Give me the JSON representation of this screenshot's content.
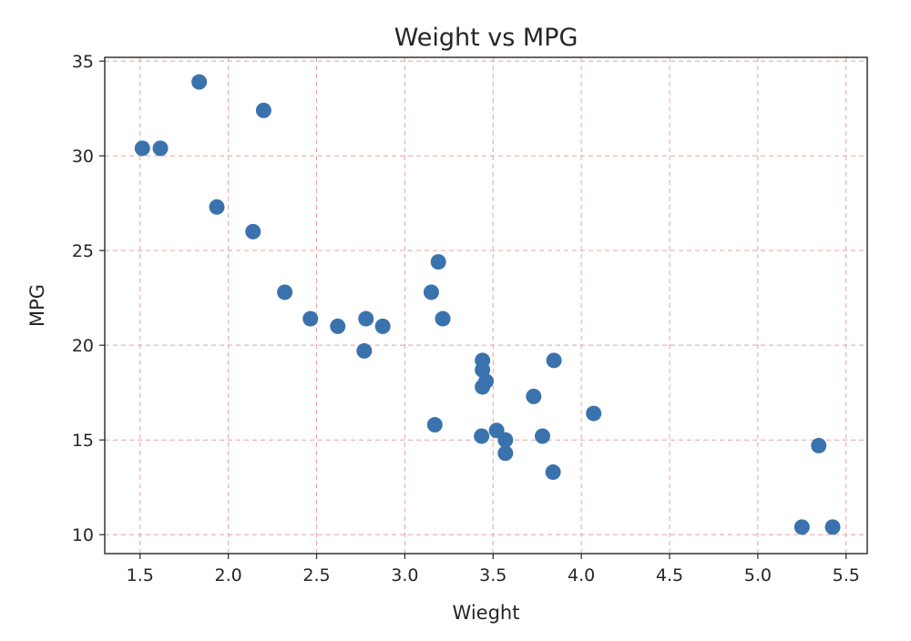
{
  "chart_data": {
    "type": "scatter",
    "title": "Weight vs MPG",
    "xlabel": "Wieght",
    "ylabel": "MPG",
    "xlim": [
      1.3,
      5.62
    ],
    "ylim": [
      9.0,
      35.2
    ],
    "xticks": [
      1.5,
      2.0,
      2.5,
      3.0,
      3.5,
      4.0,
      4.5,
      5.0,
      5.5
    ],
    "xtick_labels": [
      "1.5",
      "2.0",
      "2.5",
      "3.0",
      "3.5",
      "4.0",
      "4.5",
      "5.0",
      "5.5"
    ],
    "yticks": [
      10,
      15,
      20,
      25,
      30,
      35
    ],
    "ytick_labels": [
      "10",
      "15",
      "20",
      "25",
      "30",
      "35"
    ],
    "grid": true,
    "grid_color": "#e8a0a0",
    "marker_color": "#3a72ad",
    "points": [
      {
        "x": 1.513,
        "y": 30.4
      },
      {
        "x": 1.615,
        "y": 30.4
      },
      {
        "x": 1.835,
        "y": 33.9
      },
      {
        "x": 1.935,
        "y": 27.3
      },
      {
        "x": 2.14,
        "y": 26.0
      },
      {
        "x": 2.2,
        "y": 32.4
      },
      {
        "x": 2.32,
        "y": 22.8
      },
      {
        "x": 2.465,
        "y": 21.4
      },
      {
        "x": 2.62,
        "y": 21.0
      },
      {
        "x": 2.77,
        "y": 19.7
      },
      {
        "x": 2.78,
        "y": 21.4
      },
      {
        "x": 2.875,
        "y": 21.0
      },
      {
        "x": 3.15,
        "y": 22.8
      },
      {
        "x": 3.17,
        "y": 15.8
      },
      {
        "x": 3.19,
        "y": 24.4
      },
      {
        "x": 3.215,
        "y": 21.4
      },
      {
        "x": 3.435,
        "y": 15.2
      },
      {
        "x": 3.44,
        "y": 17.8
      },
      {
        "x": 3.44,
        "y": 18.7
      },
      {
        "x": 3.44,
        "y": 19.2
      },
      {
        "x": 3.46,
        "y": 18.1
      },
      {
        "x": 3.52,
        "y": 15.5
      },
      {
        "x": 3.57,
        "y": 14.3
      },
      {
        "x": 3.57,
        "y": 15.0
      },
      {
        "x": 3.73,
        "y": 17.3
      },
      {
        "x": 3.78,
        "y": 15.2
      },
      {
        "x": 3.84,
        "y": 13.3
      },
      {
        "x": 3.845,
        "y": 19.2
      },
      {
        "x": 4.07,
        "y": 16.4
      },
      {
        "x": 5.25,
        "y": 10.4
      },
      {
        "x": 5.345,
        "y": 14.7
      },
      {
        "x": 5.424,
        "y": 10.4
      }
    ]
  }
}
